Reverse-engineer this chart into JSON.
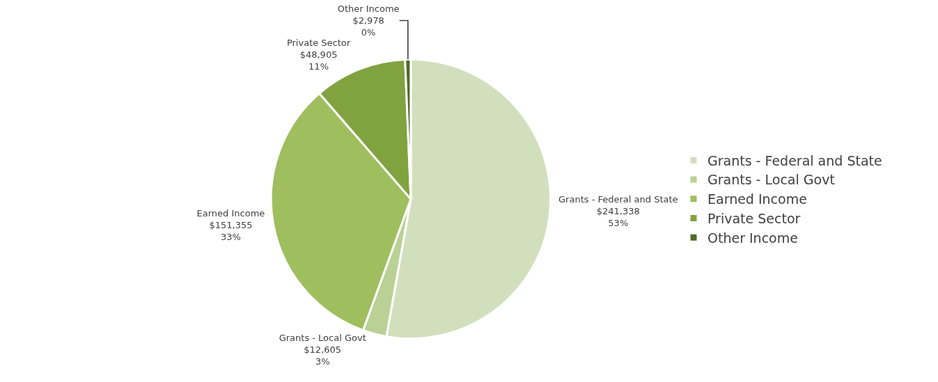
{
  "chart_data": {
    "type": "pie",
    "categories": [
      "Grants - Federal and State",
      "Grants - Local Govt",
      "Earned Income",
      "Private Sector",
      "Other Income"
    ],
    "values": [
      241338,
      12605,
      151355,
      48905,
      2978
    ],
    "colors": [
      "#d2dfbd",
      "#bad195",
      "#9fbe5d",
      "#80a340",
      "#4f6c2b"
    ],
    "value_labels": [
      "$241,338\n53%",
      "$12,605\n3%",
      "$151,355\n33%",
      "$48,905\n11%",
      "$2,978\n0%"
    ],
    "legend": "right"
  }
}
